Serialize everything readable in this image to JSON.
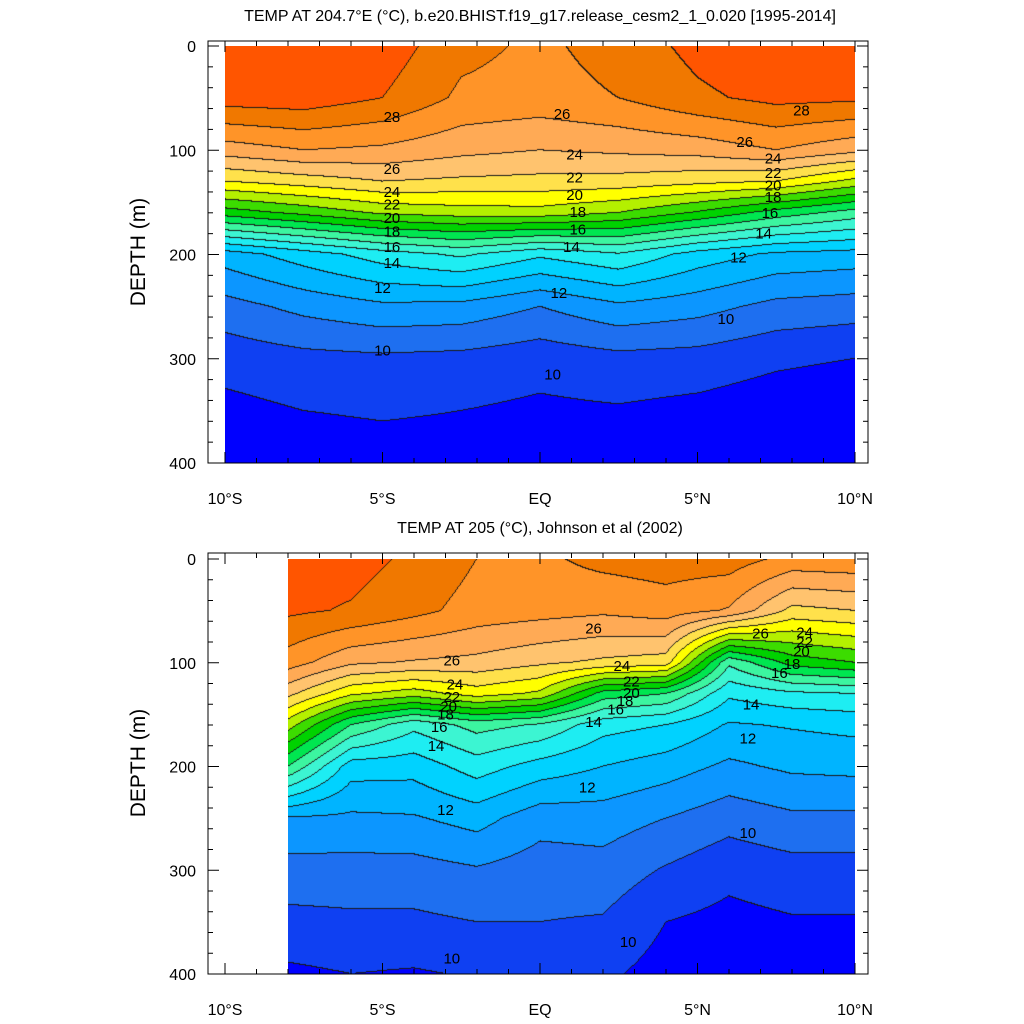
{
  "chart_data": [
    {
      "type": "contour",
      "title": "TEMP AT 204.7°E (°C), b.e20.BHIST.f19_g17.release_cesm2_1_0.020 [1995-2014]",
      "xlabel": "",
      "ylabel": "DEPTH (m)",
      "x_ticks": [
        "10°S",
        "5°S",
        "EQ",
        "5°N",
        "10°N"
      ],
      "x_tick_values": [
        -10,
        -5,
        0,
        5,
        10
      ],
      "y_ticks": [
        "0",
        "100",
        "200",
        "300",
        "400"
      ],
      "y_tick_values": [
        0,
        100,
        200,
        300,
        400
      ],
      "xlim": [
        -10,
        10
      ],
      "ylim": [
        400,
        0
      ],
      "data_xlim": [
        -10,
        10
      ],
      "contour_levels": [
        10,
        11,
        12,
        13,
        14,
        15,
        16,
        17,
        18,
        19,
        20,
        21,
        22,
        23,
        24,
        25,
        26,
        27,
        28
      ],
      "profile_lat": [
        -10,
        -7.5,
        -5,
        -2.5,
        0,
        2.5,
        5,
        7.5,
        10
      ],
      "profile_depth": [
        0,
        50,
        100,
        130,
        160,
        200,
        250,
        300,
        350,
        400
      ],
      "profile_temp": [
        [
          29.0,
          28.5,
          25.5,
          23.0,
          19.5,
          13.5,
          11.6,
          10.4,
          9.7,
          9.3
        ],
        [
          29.0,
          28.6,
          26.0,
          23.5,
          20.3,
          14.5,
          12.3,
          10.7,
          10.0,
          9.5
        ],
        [
          28.6,
          28.0,
          25.8,
          24.0,
          21.2,
          15.5,
          12.8,
          10.8,
          10.1,
          9.6
        ],
        [
          27.3,
          26.8,
          25.3,
          23.8,
          21.5,
          16.2,
          12.7,
          10.7,
          10.0,
          9.6
        ],
        [
          26.8,
          26.6,
          25.0,
          23.7,
          21.6,
          15.2,
          12.0,
          10.4,
          9.8,
          9.5
        ],
        [
          27.4,
          27.0,
          25.2,
          23.6,
          21.0,
          15.9,
          12.8,
          10.7,
          9.9,
          9.6
        ],
        [
          28.3,
          27.8,
          25.4,
          23.3,
          19.9,
          14.6,
          12.4,
          10.6,
          9.7,
          9.3
        ],
        [
          28.8,
          28.3,
          26.0,
          23.0,
          18.6,
          13.8,
          11.7,
          10.2,
          9.4,
          9.0
        ],
        [
          28.9,
          28.2,
          25.3,
          21.7,
          17.6,
          13.6,
          11.5,
          10.0,
          9.2,
          8.8
        ]
      ],
      "contour_labels": [
        {
          "text": "28",
          "lat": -4.7,
          "depth": 68
        },
        {
          "text": "28",
          "lat": 8.3,
          "depth": 62
        },
        {
          "text": "26",
          "lat": 0.7,
          "depth": 65
        },
        {
          "text": "26",
          "lat": -4.7,
          "depth": 118
        },
        {
          "text": "26",
          "lat": 6.5,
          "depth": 92
        },
        {
          "text": "24",
          "lat": -4.7,
          "depth": 140
        },
        {
          "text": "24",
          "lat": 1.1,
          "depth": 104
        },
        {
          "text": "24",
          "lat": 7.4,
          "depth": 108
        },
        {
          "text": "22",
          "lat": -4.7,
          "depth": 152
        },
        {
          "text": "22",
          "lat": 1.1,
          "depth": 126
        },
        {
          "text": "22",
          "lat": 7.4,
          "depth": 122
        },
        {
          "text": "20",
          "lat": -4.7,
          "depth": 165
        },
        {
          "text": "20",
          "lat": 1.1,
          "depth": 143
        },
        {
          "text": "20",
          "lat": 7.4,
          "depth": 134
        },
        {
          "text": "18",
          "lat": -4.7,
          "depth": 178
        },
        {
          "text": "18",
          "lat": 1.2,
          "depth": 159
        },
        {
          "text": "18",
          "lat": 7.4,
          "depth": 145
        },
        {
          "text": "16",
          "lat": -4.7,
          "depth": 193
        },
        {
          "text": "16",
          "lat": 1.2,
          "depth": 176
        },
        {
          "text": "16",
          "lat": 7.3,
          "depth": 160
        },
        {
          "text": "14",
          "lat": -4.7,
          "depth": 208
        },
        {
          "text": "14",
          "lat": 1.0,
          "depth": 193
        },
        {
          "text": "14",
          "lat": 7.1,
          "depth": 180
        },
        {
          "text": "12",
          "lat": -5.0,
          "depth": 232
        },
        {
          "text": "12",
          "lat": 0.6,
          "depth": 237
        },
        {
          "text": "12",
          "lat": 6.3,
          "depth": 203
        },
        {
          "text": "10",
          "lat": -5.0,
          "depth": 292
        },
        {
          "text": "10",
          "lat": 0.4,
          "depth": 315
        },
        {
          "text": "10",
          "lat": 5.9,
          "depth": 262
        }
      ]
    },
    {
      "type": "contour",
      "title": "TEMP AT 205 (°C), Johnson et al (2002)",
      "xlabel": "",
      "ylabel": "DEPTH (m)",
      "x_ticks": [
        "10°S",
        "5°S",
        "EQ",
        "5°N",
        "10°N"
      ],
      "x_tick_values": [
        -10,
        -5,
        0,
        5,
        10
      ],
      "y_ticks": [
        "0",
        "100",
        "200",
        "300",
        "400"
      ],
      "y_tick_values": [
        0,
        100,
        200,
        300,
        400
      ],
      "xlim": [
        -10,
        10
      ],
      "ylim": [
        400,
        0
      ],
      "data_xlim": [
        -8,
        10
      ],
      "contour_levels": [
        10,
        11,
        12,
        13,
        14,
        15,
        16,
        17,
        18,
        19,
        20,
        21,
        22,
        23,
        24,
        25,
        26,
        27,
        28
      ],
      "profile_lat": [
        -8,
        -6,
        -4,
        -2,
        0,
        2,
        4,
        6,
        8,
        10
      ],
      "profile_depth": [
        0,
        50,
        100,
        130,
        160,
        200,
        250,
        300,
        350,
        400
      ],
      "profile_temp": [
        [
          28.5,
          28.2,
          26.5,
          24.3,
          21.5,
          18.0,
          12.9,
          11.6,
          10.7,
          9.8
        ],
        [
          28.4,
          27.9,
          25.2,
          22.2,
          18.0,
          14.5,
          12.8,
          11.6,
          10.8,
          10.0
        ],
        [
          27.8,
          27.3,
          24.9,
          21.5,
          16.3,
          14.4,
          12.9,
          11.6,
          10.8,
          9.9
        ],
        [
          27.0,
          26.6,
          24.7,
          22.5,
          17.4,
          15.5,
          13.4,
          11.9,
          11.0,
          10.1
        ],
        [
          26.8,
          26.4,
          24.2,
          21.8,
          16.9,
          14.6,
          12.4,
          11.5,
          11.0,
          10.3
        ],
        [
          27.3,
          26.2,
          23.8,
          18.6,
          15.4,
          14.0,
          12.5,
          11.6,
          10.9,
          10.2
        ],
        [
          27.5,
          26.5,
          23.5,
          18.0,
          15.0,
          13.5,
          12.0,
          10.9,
          10.0,
          9.6
        ],
        [
          27.5,
          25.9,
          17.2,
          15.2,
          13.9,
          12.8,
          11.4,
          10.3,
          9.7,
          9.3
        ],
        [
          26.7,
          23.7,
          19.4,
          15.8,
          14.1,
          13.2,
          11.8,
          10.6,
          9.9,
          9.4
        ],
        [
          26.8,
          24.0,
          20.0,
          16.0,
          14.3,
          13.3,
          11.8,
          10.6,
          9.9,
          9.5
        ]
      ],
      "contour_labels": [
        {
          "text": "26",
          "lat": 1.7,
          "depth": 67
        },
        {
          "text": "26",
          "lat": 7.0,
          "depth": 72
        },
        {
          "text": "26",
          "lat": -2.8,
          "depth": 98
        },
        {
          "text": "24",
          "lat": -2.7,
          "depth": 121
        },
        {
          "text": "24",
          "lat": 2.6,
          "depth": 103
        },
        {
          "text": "24",
          "lat": 8.4,
          "depth": 71
        },
        {
          "text": "22",
          "lat": -2.8,
          "depth": 133
        },
        {
          "text": "22",
          "lat": 2.9,
          "depth": 118
        },
        {
          "text": "22",
          "lat": 8.4,
          "depth": 80
        },
        {
          "text": "20",
          "lat": -2.9,
          "depth": 142
        },
        {
          "text": "20",
          "lat": 2.9,
          "depth": 129
        },
        {
          "text": "20",
          "lat": 8.3,
          "depth": 89
        },
        {
          "text": "18",
          "lat": -3.0,
          "depth": 150
        },
        {
          "text": "18",
          "lat": 2.7,
          "depth": 137
        },
        {
          "text": "18",
          "lat": 8.0,
          "depth": 101
        },
        {
          "text": "16",
          "lat": -3.2,
          "depth": 162
        },
        {
          "text": "16",
          "lat": 2.4,
          "depth": 145
        },
        {
          "text": "16",
          "lat": 7.6,
          "depth": 110
        },
        {
          "text": "14",
          "lat": -3.3,
          "depth": 180
        },
        {
          "text": "14",
          "lat": 1.7,
          "depth": 157
        },
        {
          "text": "14",
          "lat": 6.7,
          "depth": 140
        },
        {
          "text": "12",
          "lat": -3.0,
          "depth": 242
        },
        {
          "text": "12",
          "lat": 1.5,
          "depth": 220
        },
        {
          "text": "12",
          "lat": 6.6,
          "depth": 173
        },
        {
          "text": "10",
          "lat": 6.6,
          "depth": 264
        },
        {
          "text": "10",
          "lat": 2.8,
          "depth": 369
        },
        {
          "text": "10",
          "lat": -2.8,
          "depth": 385
        }
      ]
    }
  ],
  "colors": {
    "colormap": [
      "#0000ff",
      "#0f40f2",
      "#1e6ff0",
      "#0c96ff",
      "#00b4ff",
      "#00d2ff",
      "#1eedf2",
      "#3cf5d2",
      "#3cf5a0",
      "#00e650",
      "#00d200",
      "#3cdc00",
      "#b4f000",
      "#ffff00",
      "#ffe14b",
      "#ffc36e",
      "#ffaa55",
      "#ff9428",
      "#f07800",
      "#ff5500",
      "#ff1e00",
      "#dc0000"
    ],
    "contour_line": "#000000",
    "axis": "#000000"
  }
}
